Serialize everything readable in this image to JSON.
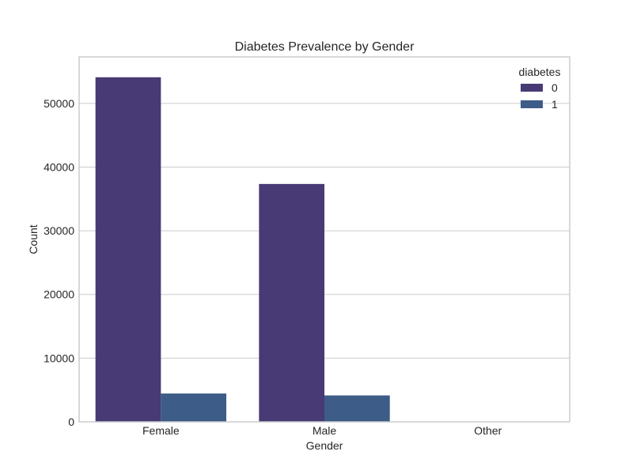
{
  "chart_data": {
    "type": "bar",
    "title": "Diabetes Prevalence by Gender",
    "xlabel": "Gender",
    "ylabel": "Count",
    "categories": [
      "Female",
      "Male",
      "Other"
    ],
    "series": [
      {
        "name": "0",
        "values": [
          54100,
          37350,
          18
        ],
        "color": "#483a75"
      },
      {
        "name": "1",
        "values": [
          4450,
          4150,
          0
        ],
        "color": "#3d5c87"
      }
    ],
    "ylim": [
      0,
      57300
    ],
    "yticks": [
      0,
      10000,
      20000,
      30000,
      40000,
      50000
    ],
    "ytick_labels": [
      "0",
      "10000",
      "20000",
      "30000",
      "40000",
      "50000"
    ],
    "grid": "horizontal",
    "legend": {
      "title": "diabetes",
      "placement": "top-right",
      "labels": [
        "0",
        "1"
      ]
    }
  }
}
